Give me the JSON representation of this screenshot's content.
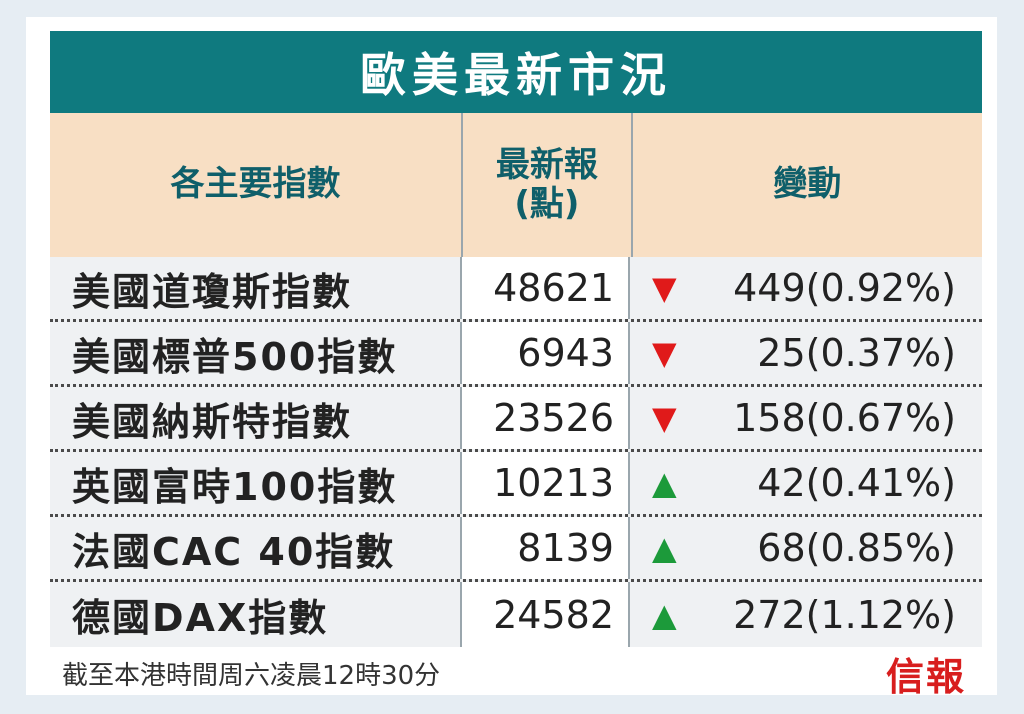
{
  "title": "歐美最新市況",
  "headers": {
    "col1": "各主要指數",
    "col2_line1": "最新報",
    "col2_line2": "(點)",
    "col3": "變動"
  },
  "rows": [
    {
      "name": "美國道瓊斯指數",
      "value": "48621",
      "direction": "down",
      "change": "449(0.92%)"
    },
    {
      "name": "美國標普500指數",
      "value": "6943",
      "direction": "down",
      "change": "25(0.37%)"
    },
    {
      "name": "美國納斯特指數",
      "value": "23526",
      "direction": "down",
      "change": "158(0.67%)"
    },
    {
      "name": "英國富時100指數",
      "value": "10213",
      "direction": "up",
      "change": "42(0.41%)"
    },
    {
      "name": "法國CAC 40指數",
      "value": "8139",
      "direction": "up",
      "change": "68(0.85%)"
    },
    {
      "name": "德國DAX指數",
      "value": "24582",
      "direction": "up",
      "change": "272(1.12%)"
    }
  ],
  "footnote": "截至本港時間周六凌晨12時30分",
  "logo": "信報",
  "colors": {
    "title_bg": "#0f7a7f",
    "header_bg": "#f8dfc4",
    "down": "#e01a1a",
    "up": "#1c9a3a"
  }
}
